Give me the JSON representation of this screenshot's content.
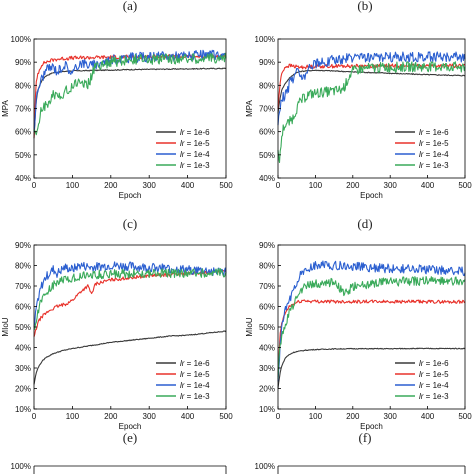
{
  "labels": {
    "panels": [
      "(a)",
      "(b)",
      "(c)",
      "(d)",
      "(e)",
      "(f)"
    ]
  },
  "chart_data": [
    {
      "panel": "(a)",
      "type": "line",
      "xlabel": "Epoch",
      "ylabel": "MPA",
      "xlim": [
        0,
        500
      ],
      "ylim": [
        40,
        100
      ],
      "xticks": [
        "0",
        "100",
        "200",
        "300",
        "400",
        "500"
      ],
      "yticks": [
        "40%",
        "50%",
        "60%",
        "70%",
        "80%",
        "90%",
        "100%"
      ],
      "legend": "lower-right",
      "series": [
        {
          "name": "1e-6",
          "color": "#3a3a3a",
          "x": [
            0,
            5,
            10,
            20,
            30,
            50,
            80,
            100,
            150,
            200,
            250,
            300,
            350,
            400,
            450,
            500
          ],
          "y": [
            57,
            72,
            78,
            82,
            84,
            85.5,
            86,
            86.2,
            86.4,
            86.6,
            86.8,
            86.9,
            87,
            87.1,
            87.2,
            87.3
          ]
        },
        {
          "name": "1e-5",
          "color": "#e8322b",
          "x": [
            0,
            5,
            10,
            15,
            20,
            30,
            40,
            50,
            60,
            80,
            100,
            150,
            200,
            250,
            300,
            400,
            500
          ],
          "y": [
            58,
            80,
            85,
            87,
            89,
            90,
            90.5,
            91,
            91.3,
            91.6,
            91.8,
            92,
            92.2,
            92.3,
            92.4,
            92.5,
            92.5
          ]
        },
        {
          "name": "1e-4",
          "color": "#2b5fd0",
          "x": [
            0,
            5,
            10,
            20,
            30,
            40,
            50,
            60,
            80,
            100,
            120,
            150,
            200,
            250,
            300,
            350,
            400,
            450,
            500
          ],
          "y": [
            60,
            72,
            78,
            83,
            86,
            87.5,
            88,
            86,
            89,
            85,
            90,
            88.5,
            91,
            92,
            92.2,
            92.5,
            92.7,
            93,
            93
          ]
        },
        {
          "name": "1e-3",
          "color": "#3aaa5a",
          "x": [
            0,
            5,
            10,
            15,
            20,
            30,
            40,
            50,
            60,
            80,
            100,
            120,
            140,
            150,
            160,
            170,
            180,
            200,
            250,
            300,
            350,
            400,
            450,
            500
          ],
          "y": [
            60,
            58,
            62,
            66,
            70,
            71,
            73,
            76,
            75,
            77,
            80,
            82,
            80,
            84,
            88,
            89,
            89,
            90,
            91,
            91.2,
            91.4,
            91.5,
            91.7,
            91.8
          ]
        }
      ]
    },
    {
      "panel": "(b)",
      "type": "line",
      "xlabel": "Epoch",
      "ylabel": "MPA",
      "xlim": [
        0,
        500
      ],
      "ylim": [
        40,
        100
      ],
      "xticks": [
        "0",
        "100",
        "200",
        "300",
        "400",
        "500"
      ],
      "yticks": [
        "40%",
        "50%",
        "60%",
        "70%",
        "80%",
        "90%",
        "100%"
      ],
      "legend": "lower-right",
      "series": [
        {
          "name": "1e-6",
          "color": "#3a3a3a",
          "x": [
            0,
            5,
            10,
            20,
            30,
            40,
            50,
            60,
            80,
            100,
            150,
            200,
            250,
            300,
            350,
            400,
            450,
            500
          ],
          "y": [
            68,
            74,
            78,
            81,
            83,
            84.5,
            85.5,
            86,
            86.3,
            86.5,
            86.2,
            85.8,
            85.5,
            85.2,
            84.9,
            84.6,
            84.4,
            84.2
          ]
        },
        {
          "name": "1e-5",
          "color": "#e8322b",
          "x": [
            0,
            5,
            10,
            15,
            20,
            30,
            40,
            50,
            60,
            80,
            100,
            150,
            200,
            300,
            400,
            500
          ],
          "y": [
            70,
            80,
            85,
            87,
            88,
            88.5,
            88.3,
            88,
            87.8,
            88,
            88.2,
            88.3,
            88.3,
            88.4,
            88.4,
            88.4
          ]
        },
        {
          "name": "1e-4",
          "color": "#2b5fd0",
          "x": [
            0,
            5,
            10,
            20,
            30,
            40,
            50,
            60,
            70,
            80,
            90,
            100,
            120,
            150,
            200,
            250,
            300,
            350,
            400,
            450,
            500
          ],
          "y": [
            62,
            70,
            74,
            76,
            80,
            83,
            86,
            85,
            84,
            88,
            89,
            89.5,
            90,
            91,
            91.8,
            92,
            92.2,
            92.3,
            92.3,
            92.3,
            92.3
          ]
        },
        {
          "name": "1e-3",
          "color": "#3aaa5a",
          "x": [
            0,
            5,
            10,
            15,
            20,
            30,
            40,
            50,
            60,
            80,
            100,
            120,
            150,
            170,
            180,
            190,
            200,
            220,
            250,
            300,
            350,
            400,
            450,
            500
          ],
          "y": [
            50,
            48,
            58,
            62,
            63,
            64,
            66,
            70,
            73,
            76,
            76.5,
            77,
            77.5,
            78,
            80,
            84,
            86,
            87,
            87.5,
            87.8,
            88,
            88,
            88,
            88
          ]
        }
      ]
    },
    {
      "panel": "(c)",
      "type": "line",
      "xlabel": "Epoch",
      "ylabel": "MIoU",
      "xlim": [
        0,
        500
      ],
      "ylim": [
        10,
        90
      ],
      "xticks": [
        "0",
        "100",
        "200",
        "300",
        "400",
        "500"
      ],
      "yticks": [
        "10%",
        "20%",
        "30%",
        "40%",
        "50%",
        "60%",
        "70%",
        "80%",
        "90%"
      ],
      "legend": "lower-right",
      "series": [
        {
          "name": "1e-6",
          "color": "#3a3a3a",
          "x": [
            0,
            5,
            10,
            20,
            30,
            50,
            75,
            100,
            150,
            200,
            250,
            300,
            350,
            400,
            450,
            500
          ],
          "y": [
            22,
            27,
            30,
            33,
            35,
            37,
            38.5,
            39.5,
            41,
            42.5,
            43.5,
            44.5,
            45.5,
            46,
            47,
            48
          ]
        },
        {
          "name": "1e-5",
          "color": "#e8322b",
          "x": [
            0,
            10,
            20,
            40,
            60,
            80,
            100,
            120,
            140,
            150,
            160,
            180,
            200,
            250,
            300,
            350,
            400,
            450,
            500
          ],
          "y": [
            45,
            52,
            55,
            58,
            60,
            61,
            63,
            67,
            70,
            66,
            71,
            72,
            73,
            74,
            75,
            75.5,
            76,
            76.5,
            77
          ]
        },
        {
          "name": "1e-4",
          "color": "#2b5fd0",
          "x": [
            0,
            5,
            10,
            20,
            30,
            40,
            50,
            60,
            80,
            100,
            120,
            150,
            200,
            250,
            300,
            350,
            400,
            450,
            500
          ],
          "y": [
            48,
            58,
            64,
            70,
            74,
            76,
            78,
            76,
            79,
            78,
            80,
            79,
            80,
            79.5,
            79,
            78.5,
            78,
            77.5,
            77
          ]
        },
        {
          "name": "1e-3",
          "color": "#3aaa5a",
          "x": [
            0,
            5,
            10,
            20,
            30,
            40,
            50,
            60,
            80,
            100,
            120,
            150,
            200,
            250,
            300,
            350,
            400,
            450,
            500
          ],
          "y": [
            50,
            52,
            58,
            63,
            66,
            68,
            70,
            72,
            73,
            74,
            75,
            75.5,
            76,
            76,
            76.2,
            76.3,
            76.3,
            76.4,
            76.4
          ]
        }
      ]
    },
    {
      "panel": "(d)",
      "type": "line",
      "xlabel": "Epoch",
      "ylabel": "MIoU",
      "xlim": [
        0,
        500
      ],
      "ylim": [
        10,
        90
      ],
      "xticks": [
        "0",
        "100",
        "200",
        "300",
        "400",
        "500"
      ],
      "yticks": [
        "10%",
        "20%",
        "30%",
        "40%",
        "50%",
        "60%",
        "70%",
        "80%",
        "90%"
      ],
      "legend": "lower-right",
      "series": [
        {
          "name": "1e-6",
          "color": "#3a3a3a",
          "x": [
            0,
            5,
            10,
            20,
            30,
            40,
            50,
            75,
            100,
            150,
            200,
            250,
            300,
            350,
            400,
            450,
            500
          ],
          "y": [
            20,
            27,
            31,
            35,
            36.5,
            37.5,
            38,
            38.7,
            39,
            39.3,
            39.4,
            39.4,
            39.4,
            39.5,
            39.5,
            39.5,
            39.5
          ]
        },
        {
          "name": "1e-5",
          "color": "#e8322b",
          "x": [
            0,
            5,
            10,
            20,
            30,
            40,
            50,
            60,
            70,
            80,
            100,
            150,
            200,
            300,
            400,
            500
          ],
          "y": [
            25,
            45,
            52,
            57,
            60,
            61,
            62,
            62.5,
            63,
            62.6,
            62.5,
            62.4,
            62.4,
            62.4,
            62.3,
            62.3
          ]
        },
        {
          "name": "1e-4",
          "color": "#2b5fd0",
          "x": [
            0,
            5,
            10,
            20,
            30,
            40,
            50,
            60,
            70,
            80,
            100,
            120,
            150,
            200,
            250,
            300,
            350,
            400,
            450,
            500
          ],
          "y": [
            25,
            38,
            50,
            58,
            63,
            68,
            72,
            75,
            77,
            78,
            80,
            80.5,
            80,
            79.5,
            79,
            78.5,
            78.2,
            78,
            77.5,
            77
          ]
        },
        {
          "name": "1e-3",
          "color": "#3aaa5a",
          "x": [
            0,
            5,
            10,
            20,
            30,
            40,
            50,
            60,
            80,
            100,
            130,
            150,
            170,
            180,
            200,
            250,
            300,
            350,
            400,
            450,
            500
          ],
          "y": [
            25,
            40,
            45,
            52,
            57,
            60,
            65,
            68,
            70,
            71,
            71.5,
            72,
            68,
            66,
            70,
            71,
            72,
            72.3,
            72.5,
            72.5,
            72.5
          ]
        }
      ]
    },
    {
      "panel": "(e)",
      "type": "line",
      "ylim": [
        null,
        100
      ],
      "yticks": [
        "100%"
      ],
      "series": []
    },
    {
      "panel": "(f)",
      "type": "line",
      "ylim": [
        null,
        100
      ],
      "yticks": [
        "100%"
      ],
      "series": []
    }
  ]
}
